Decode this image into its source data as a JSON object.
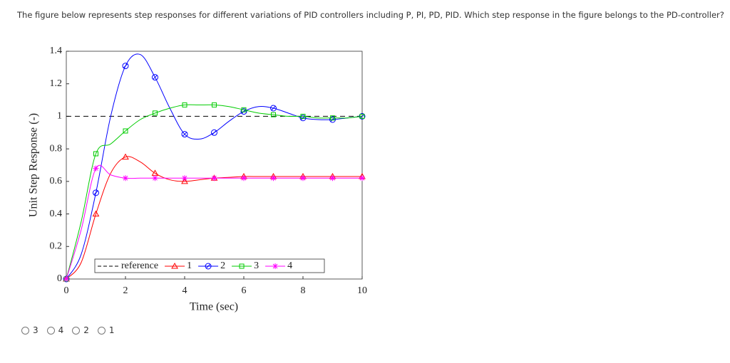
{
  "question": "The figure below represents step responses for different variations of PID controllers including P, PI, PD, PID. Which step response in the figure belongs to the PD-controller?",
  "chart_data": {
    "type": "line",
    "xlabel": "Time (sec)",
    "ylabel": "Unit Step Response (-)",
    "x": [
      0,
      0.5,
      1,
      1.5,
      2,
      2.5,
      3,
      3.5,
      4,
      4.5,
      5,
      5.5,
      6,
      6.5,
      7,
      7.5,
      8,
      8.5,
      9,
      9.5,
      10
    ],
    "series": [
      {
        "name": "reference",
        "color": "#000000",
        "dash": true,
        "marker": "none",
        "values": [
          1,
          1,
          1,
          1,
          1,
          1,
          1,
          1,
          1,
          1,
          1,
          1,
          1,
          1,
          1,
          1,
          1,
          1,
          1,
          1,
          1
        ]
      },
      {
        "name": "1",
        "color": "#ff0000",
        "marker": "triangle",
        "values": [
          0,
          0.1,
          0.4,
          0.65,
          0.75,
          0.72,
          0.65,
          0.61,
          0.6,
          0.61,
          0.62,
          0.625,
          0.63,
          0.63,
          0.63,
          0.63,
          0.63,
          0.63,
          0.63,
          0.63,
          0.63
        ]
      },
      {
        "name": "2",
        "color": "#0000ff",
        "marker": "circle",
        "values": [
          0,
          0.15,
          0.53,
          1.0,
          1.31,
          1.38,
          1.24,
          1.05,
          0.89,
          0.86,
          0.9,
          0.97,
          1.03,
          1.06,
          1.05,
          1.02,
          0.99,
          0.98,
          0.98,
          0.99,
          1.0
        ]
      },
      {
        "name": "3",
        "color": "#00cc00",
        "marker": "square",
        "values": [
          0,
          0.35,
          0.77,
          0.83,
          0.91,
          0.98,
          1.02,
          1.05,
          1.07,
          1.07,
          1.07,
          1.06,
          1.04,
          1.02,
          1.01,
          1.0,
          1.0,
          0.99,
          0.99,
          0.99,
          1.0
        ]
      },
      {
        "name": "4",
        "color": "#ff00ff",
        "marker": "star",
        "values": [
          0,
          0.3,
          0.68,
          0.64,
          0.62,
          0.62,
          0.62,
          0.62,
          0.62,
          0.62,
          0.62,
          0.62,
          0.62,
          0.62,
          0.62,
          0.62,
          0.62,
          0.62,
          0.62,
          0.62,
          0.62
        ]
      }
    ],
    "xlim": [
      0,
      10
    ],
    "xticks": [
      0,
      2,
      4,
      6,
      8,
      10
    ],
    "ylim": [
      0,
      1.4
    ],
    "yticks": [
      0,
      0.2,
      0.4,
      0.6,
      0.8,
      1,
      1.2,
      1.4
    ],
    "legend": "bottom"
  },
  "options": [
    "3",
    "4",
    "2",
    "1"
  ]
}
